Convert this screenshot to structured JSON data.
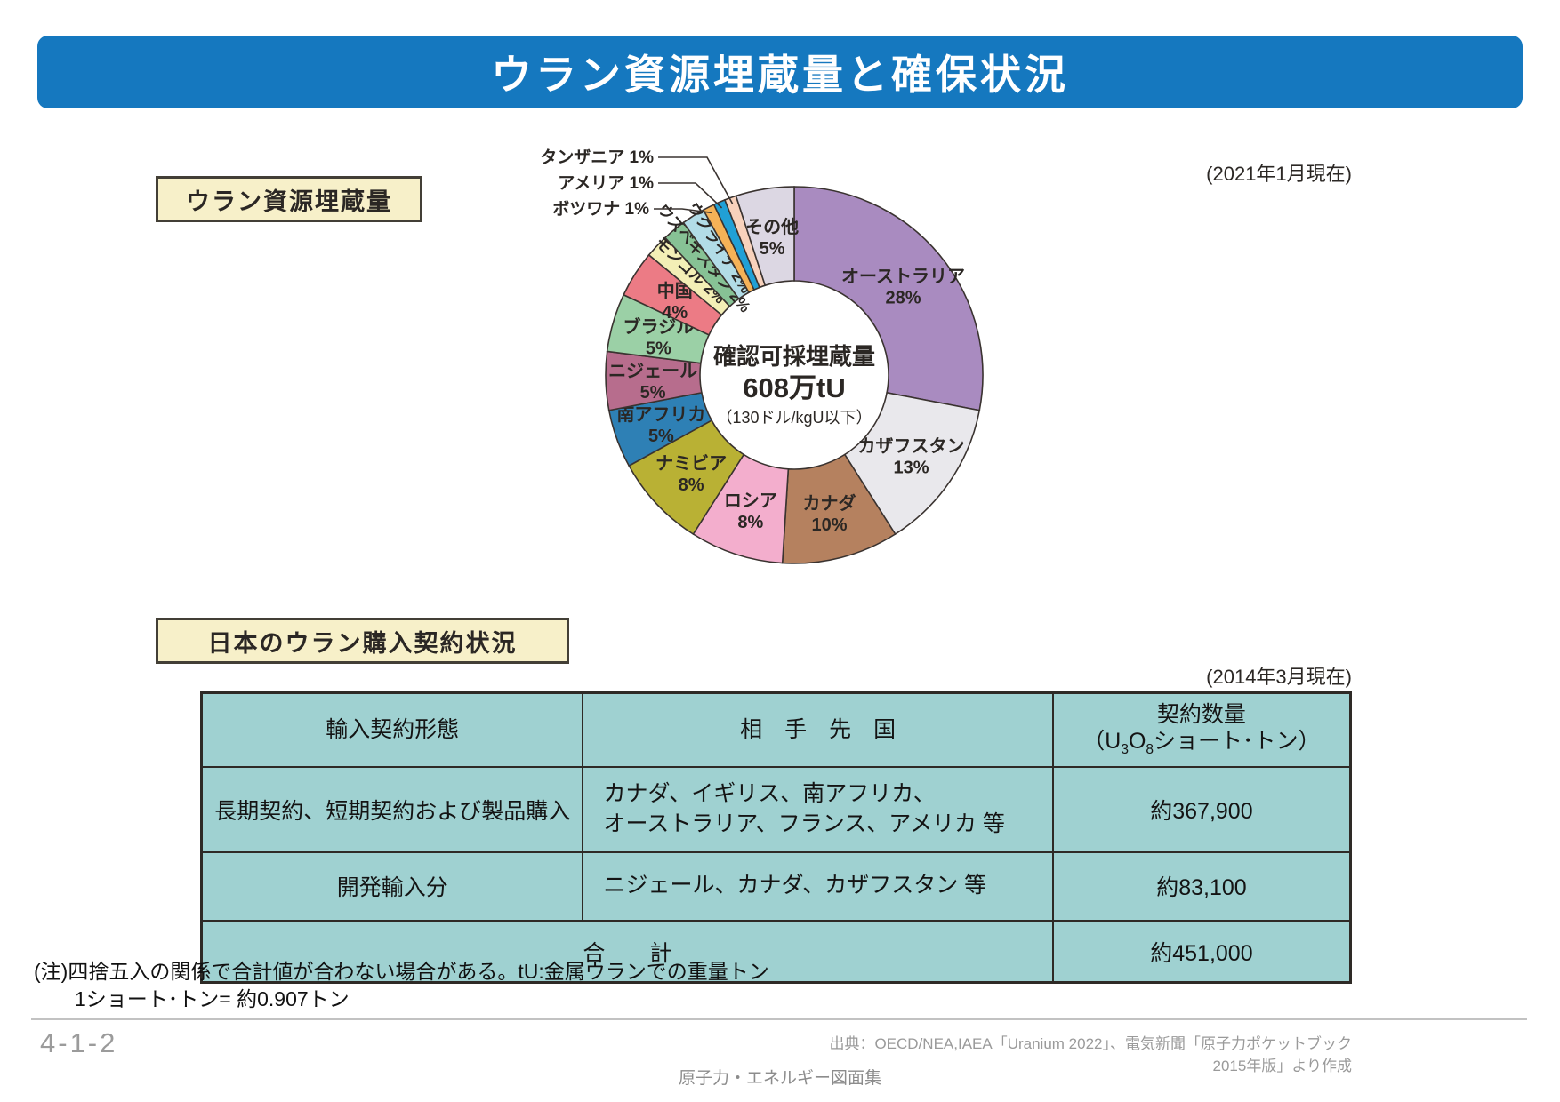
{
  "page": {
    "title": "ウラン資源埋蔵量と確保状況",
    "page_number": "4-1-2",
    "source": "出典：OECD/NEA,IAEA「Uranium 2022」、電気新聞「原子力ポケットブック2015年版」より作成",
    "footer": "原子力・エネルギー図面集"
  },
  "section1": {
    "label": "ウラン資源埋蔵量",
    "date": "(2021年1月現在)"
  },
  "section2": {
    "label": "日本のウラン購入契約状況",
    "date": "(2014年3月現在)"
  },
  "chart_data": {
    "type": "pie",
    "subtype": "donut",
    "center_lines": [
      "確認可採埋蔵量",
      "608万tU",
      "（130ドル/kgU以下）"
    ],
    "unit": "%",
    "slices": [
      {
        "label": "オーストラリア",
        "pct": 28,
        "color": "#a98bc0",
        "display": "inside"
      },
      {
        "label": "カザフスタン",
        "pct": 13,
        "color": "#e9e8ec",
        "display": "inside"
      },
      {
        "label": "カナダ",
        "pct": 10,
        "color": "#b5815f",
        "display": "inside"
      },
      {
        "label": "ロシア",
        "pct": 8,
        "color": "#f3aecd",
        "display": "inside"
      },
      {
        "label": "ナミビア",
        "pct": 8,
        "color": "#b9b134",
        "display": "inside"
      },
      {
        "label": "南アフリカ",
        "pct": 5,
        "color": "#2e80b5",
        "display": "inside"
      },
      {
        "label": "ニジェール",
        "pct": 5,
        "color": "#b76d8d",
        "display": "inside"
      },
      {
        "label": "ブラジル",
        "pct": 5,
        "color": "#9bd0a6",
        "display": "inside"
      },
      {
        "label": "中国",
        "pct": 4,
        "color": "#ec7b85",
        "display": "inside"
      },
      {
        "label": "モンゴル",
        "pct": 2,
        "color": "#f3efb6",
        "display": "rotated"
      },
      {
        "label": "ウズベキスタン",
        "pct": 2,
        "color": "#87c295",
        "display": "rotated"
      },
      {
        "label": "ウクライナ",
        "pct": 2,
        "color": "#b2dce7",
        "display": "rotated"
      },
      {
        "label": "ボツワナ",
        "pct": 1,
        "color": "#f5b257",
        "display": "callout"
      },
      {
        "label": "アメリア",
        "pct": 1,
        "color": "#21a0d6",
        "display": "callout"
      },
      {
        "label": "タンザニア",
        "pct": 1,
        "color": "#f8d2bc",
        "display": "callout"
      },
      {
        "label": "その他",
        "pct": 5,
        "color": "#dcd7e3",
        "display": "inside"
      }
    ]
  },
  "table": {
    "headers": [
      "輸入契約形態",
      "相　手　先　国"
    ],
    "qty_header_line1": "契約数量",
    "qty_unit": {
      "p1": "（U",
      "s1": "3",
      "p2": "O",
      "s2": "8",
      "p3": "ショート･トン）"
    },
    "rows": [
      {
        "type": "長期契約、短期契約および製品購入",
        "partners_lines": [
          "カナダ、イギリス、南アフリカ、",
          "オーストラリア、フランス、アメリカ 等"
        ],
        "qty": "約367,900"
      },
      {
        "type": "開発輸入分",
        "partners_lines": [
          "ニジェール、カナダ、カザフスタン 等"
        ],
        "qty": "約83,100"
      }
    ],
    "total": {
      "label": "合　　計",
      "qty": "約451,000"
    }
  },
  "notes": {
    "line1": "(注)四捨五入の関係で合計値が合わない場合がある。tU:金属ウランでの重量トン",
    "line2": "1ショート･トン= 約0.907トン"
  }
}
